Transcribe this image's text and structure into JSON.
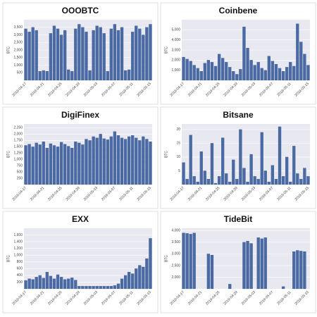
{
  "chart_data": [
    {
      "type": "bar",
      "title": "OOOBTC",
      "y_label": "BTC",
      "color": "#4a6aa5",
      "grid": true,
      "categories": [
        "2019-04-17",
        null,
        null,
        null,
        null,
        "2019-04-21",
        null,
        null,
        null,
        null,
        "2019-04-25",
        null,
        null,
        null,
        null,
        "2019-04-29",
        null,
        null,
        null,
        null,
        "2019-05-03",
        null,
        null,
        null,
        null,
        "2019-05-07",
        null,
        null,
        null,
        null,
        "2019-05-11",
        null,
        null,
        null,
        null,
        "2019-05-15"
      ],
      "values": [
        3400,
        3200,
        3500,
        3300,
        600,
        650,
        600,
        3100,
        3600,
        3400,
        3000,
        3300,
        700,
        600,
        3400,
        3700,
        3500,
        3200,
        650,
        3300,
        3600,
        3500,
        3100,
        600,
        3400,
        3700,
        3300,
        3500,
        650,
        700,
        3200,
        3600,
        3400,
        3000,
        3500,
        3700
      ],
      "ylim": [
        0,
        4000
      ],
      "yticks": [
        500,
        {
          "value": 1000,
          "label": "1,000"
        },
        {
          "value": 1500,
          "label": "1,500"
        },
        {
          "value": 2000,
          "label": "2,000"
        },
        {
          "value": 2500,
          "label": "2,500"
        },
        {
          "value": 3000,
          "label": "3,000"
        },
        {
          "value": 3500,
          "label": "3,500"
        }
      ]
    },
    {
      "type": "bar",
      "title": "Coinbene",
      "y_label": "BTC",
      "color": "#4a6aa5",
      "grid": true,
      "categories": [
        "2019-04-17",
        null,
        null,
        null,
        null,
        "2019-04-21",
        null,
        null,
        null,
        null,
        "2019-04-25",
        null,
        null,
        null,
        null,
        "2019-04-29",
        null,
        null,
        null,
        null,
        "2019-05-03",
        null,
        null,
        null,
        null,
        "2019-05-07",
        null,
        null,
        null,
        null,
        "2019-05-11",
        null,
        null,
        null,
        null,
        "2019-05-15"
      ],
      "values": [
        2300,
        2100,
        1900,
        1500,
        1200,
        900,
        1700,
        2000,
        1800,
        1400,
        2600,
        2200,
        1800,
        1300,
        900,
        600,
        1100,
        5300,
        3200,
        2000,
        1500,
        1800,
        1200,
        1000,
        2400,
        1900,
        1600,
        1200,
        900,
        1300,
        1800,
        1400,
        5600,
        3800,
        2600,
        1500
      ],
      "ylim": [
        0,
        6000
      ],
      "yticks": [
        {
          "value": 1000,
          "label": "1,000"
        },
        {
          "value": 2000,
          "label": "2,000"
        },
        {
          "value": 3000,
          "label": "3,000"
        },
        {
          "value": 4000,
          "label": "4,000"
        },
        {
          "value": 5000,
          "label": "5,000"
        }
      ]
    },
    {
      "type": "bar",
      "title": "DigiFinex",
      "y_label": "BTC",
      "color": "#4a6aa5",
      "grid": true,
      "categories": [
        "2019-04-17",
        null,
        null,
        null,
        null,
        "2019-04-21",
        null,
        null,
        null,
        null,
        "2019-04-25",
        null,
        null,
        null,
        null,
        "2019-04-29",
        null,
        null,
        null,
        null,
        "2019-05-03",
        null,
        null,
        null,
        null,
        "2019-05-07",
        null,
        null,
        null,
        null,
        "2019-05-11",
        null,
        null,
        null,
        null,
        "2019-05-15"
      ],
      "values": [
        1550,
        1600,
        1500,
        1650,
        1580,
        1700,
        1450,
        1620,
        1550,
        1500,
        1680,
        1600,
        1520,
        1450,
        1700,
        1650,
        1580,
        1800,
        1750,
        1900,
        1850,
        2000,
        1820,
        1780,
        1900,
        2100,
        1950,
        1850,
        1800,
        1900,
        1950,
        1850,
        1750,
        1900,
        1800,
        1700
      ],
      "ylim": [
        0,
        2400
      ],
      "yticks": [
        250,
        500,
        750,
        {
          "value": 1000,
          "label": "1,000"
        },
        {
          "value": 1250,
          "label": "1,250"
        },
        {
          "value": 1500,
          "label": "1,500"
        },
        {
          "value": 1750,
          "label": "1,750"
        },
        {
          "value": 2000,
          "label": "2,000"
        },
        {
          "value": 2250,
          "label": "2,250"
        }
      ]
    },
    {
      "type": "bar",
      "title": "Bitsane",
      "y_label": "BTC",
      "color": "#4a6aa5",
      "grid": true,
      "categories": [
        "2019-04-17",
        null,
        null,
        null,
        null,
        "2019-04-21",
        null,
        null,
        null,
        null,
        "2019-04-25",
        null,
        null,
        null,
        null,
        "2019-04-29",
        null,
        null,
        null,
        null,
        "2019-05-03",
        null,
        null,
        null,
        null,
        "2019-05-07",
        null,
        null,
        null,
        null,
        "2019-05-11",
        null,
        null,
        null,
        null,
        "2019-05-15"
      ],
      "values": [
        8,
        2,
        18,
        3,
        1,
        12,
        5,
        2,
        15,
        0.5,
        3,
        17,
        4,
        1,
        9,
        2,
        20,
        6,
        1,
        11,
        3,
        2,
        19,
        5,
        1,
        7,
        2,
        21,
        3,
        10,
        1,
        14,
        4,
        2,
        6,
        3
      ],
      "ylim": [
        0,
        22
      ],
      "yticks": [
        5,
        10,
        15,
        20
      ]
    },
    {
      "type": "bar",
      "title": "EXX",
      "y_label": "BTC",
      "color": "#4a6aa5",
      "grid": true,
      "categories": [
        "2019-04-17",
        null,
        null,
        null,
        null,
        "2019-04-21",
        null,
        null,
        null,
        null,
        "2019-04-25",
        null,
        null,
        null,
        null,
        "2019-04-29",
        null,
        null,
        null,
        null,
        "2019-05-03",
        null,
        null,
        null,
        null,
        "2019-05-07",
        null,
        null,
        null,
        null,
        "2019-05-11",
        null,
        null,
        null,
        null,
        "2019-05-15"
      ],
      "values": [
        250,
        300,
        280,
        350,
        400,
        320,
        500,
        380,
        300,
        420,
        350,
        280,
        300,
        330,
        260,
        80,
        80,
        80,
        80,
        80,
        80,
        80,
        80,
        80,
        80,
        100,
        150,
        300,
        400,
        500,
        450,
        600,
        700,
        650,
        900,
        1500
      ],
      "ylim": [
        0,
        1800
      ],
      "yticks": [
        200,
        400,
        600,
        800,
        {
          "value": 1000,
          "label": "1,000"
        },
        {
          "value": 1200,
          "label": "1,200"
        },
        {
          "value": 1400,
          "label": "1,400"
        },
        {
          "value": 1600,
          "label": "1,600"
        }
      ]
    },
    {
      "type": "bar",
      "title": "TideBit",
      "y_label": "BTC",
      "color": "#4a6aa5",
      "grid": true,
      "categories": [
        "2019-04-17",
        null,
        null,
        null,
        null,
        "2019-04-21",
        null,
        null,
        null,
        null,
        "2019-04-25",
        null,
        null,
        null,
        null,
        "2019-04-29",
        null,
        null,
        null,
        null,
        "2019-05-03",
        null,
        null,
        null,
        null,
        "2019-05-07",
        null,
        null,
        null,
        null,
        "2019-05-11",
        null,
        null,
        null,
        null,
        "2019-05-15"
      ],
      "values": [
        3900,
        3880,
        3850,
        3900,
        null,
        null,
        null,
        3000,
        2950,
        null,
        null,
        null,
        null,
        1700,
        null,
        null,
        null,
        3500,
        3550,
        3450,
        null,
        3700,
        3650,
        3700,
        null,
        null,
        null,
        null,
        1600,
        null,
        null,
        3100,
        3150,
        3120,
        3100,
        null
      ],
      "ylim": [
        1500,
        4100
      ],
      "yticks": [
        {
          "value": 2000,
          "label": "2,000"
        },
        {
          "value": 2500,
          "label": "2,500"
        },
        {
          "value": 3000,
          "label": "3,000"
        },
        {
          "value": 3500,
          "label": "3,500"
        },
        {
          "value": 4000,
          "label": "4,000"
        }
      ]
    }
  ]
}
